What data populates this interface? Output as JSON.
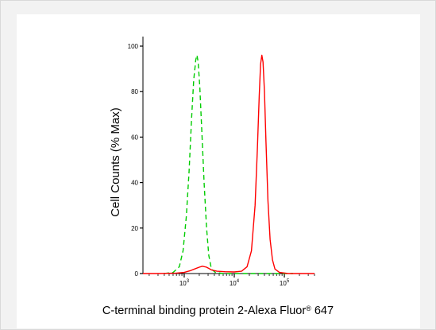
{
  "chart_data": {
    "type": "line",
    "xlabel_prefix": "C-terminal binding protein 2-Alexa Fluor",
    "xlabel_mark": "®",
    "xlabel_suffix": " 647",
    "ylabel": "Cell Counts (% Max)",
    "x_scale": "log",
    "xlim": [
      150,
      400000
    ],
    "ylim": [
      0,
      100
    ],
    "y_ticks": [
      0,
      20,
      40,
      60,
      80,
      100
    ],
    "y_tick_labels": [
      "0",
      "20",
      "40",
      "60",
      "80",
      "100"
    ],
    "x_ticks": [
      1000,
      10000,
      100000
    ],
    "x_tick_labels": [
      {
        "base": "10",
        "exp": "3"
      },
      {
        "base": "10",
        "exp": "4"
      },
      {
        "base": "10",
        "exp": "5"
      }
    ],
    "grid": false,
    "series": [
      {
        "style": "dashed",
        "color": "#00cc00",
        "points": [
          [
            400,
            0
          ],
          [
            600,
            0.5
          ],
          [
            800,
            3
          ],
          [
            950,
            10
          ],
          [
            1100,
            25
          ],
          [
            1250,
            45
          ],
          [
            1400,
            68
          ],
          [
            1550,
            85
          ],
          [
            1700,
            94
          ],
          [
            1800,
            96
          ],
          [
            1900,
            93
          ],
          [
            2050,
            82
          ],
          [
            2250,
            62
          ],
          [
            2500,
            40
          ],
          [
            2800,
            20
          ],
          [
            3100,
            8
          ],
          [
            3500,
            2
          ],
          [
            4200,
            0.5
          ],
          [
            6000,
            0
          ],
          [
            20000,
            0
          ],
          [
            60000,
            0
          ],
          [
            150000,
            0
          ]
        ]
      },
      {
        "style": "solid",
        "color": "#ff0000",
        "points": [
          [
            150,
            0
          ],
          [
            300,
            0
          ],
          [
            700,
            0.2
          ],
          [
            1000,
            0.5
          ],
          [
            1300,
            1.2
          ],
          [
            1700,
            2.2
          ],
          [
            2000,
            2.8
          ],
          [
            2300,
            3.2
          ],
          [
            2800,
            2.8
          ],
          [
            3500,
            1.6
          ],
          [
            4500,
            1
          ],
          [
            6500,
            0.8
          ],
          [
            10000,
            0.7
          ],
          [
            14000,
            1
          ],
          [
            18000,
            3
          ],
          [
            22000,
            10
          ],
          [
            26000,
            30
          ],
          [
            29000,
            55
          ],
          [
            31500,
            78
          ],
          [
            33500,
            92
          ],
          [
            35500,
            96
          ],
          [
            37500,
            93
          ],
          [
            40000,
            80
          ],
          [
            43000,
            58
          ],
          [
            47000,
            32
          ],
          [
            52000,
            15
          ],
          [
            58000,
            6
          ],
          [
            65000,
            2
          ],
          [
            80000,
            0.5
          ],
          [
            120000,
            0
          ],
          [
            400000,
            0
          ]
        ]
      }
    ]
  }
}
